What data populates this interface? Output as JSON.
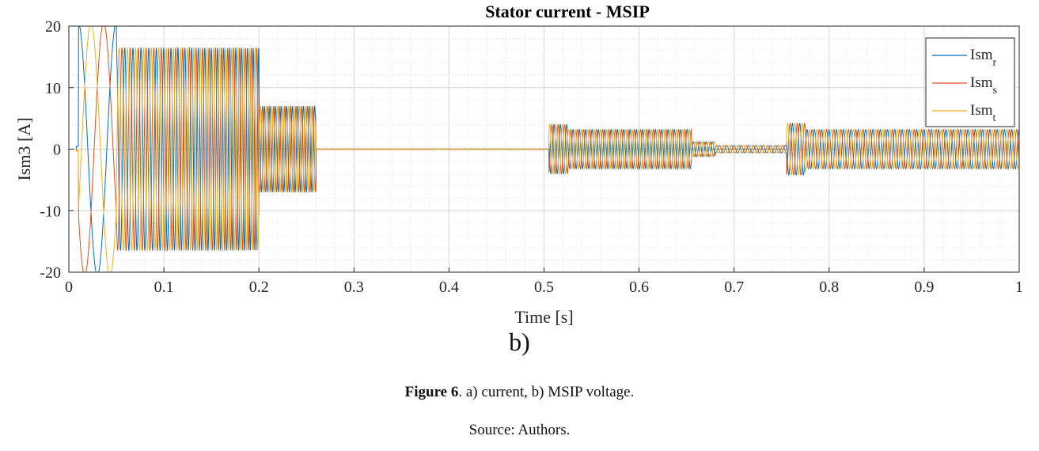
{
  "chart_data": {
    "type": "line",
    "title": "Stator current - MSIP",
    "xlabel": "Time [s]",
    "ylabel": "Ism3 [A]",
    "xlim": [
      0,
      1
    ],
    "ylim": [
      -20,
      20
    ],
    "x_ticks": [
      "0",
      "0.1",
      "0.2",
      "0.3",
      "0.4",
      "0.5",
      "0.6",
      "0.7",
      "0.8",
      "0.9",
      "1"
    ],
    "y_ticks": [
      "20",
      "10",
      "0",
      "-10",
      "-20"
    ],
    "grid": true,
    "legend_position": "top-right",
    "series": [
      {
        "name": "Ism",
        "subscript": "r",
        "color": "#0072BD"
      },
      {
        "name": "Ism",
        "subscript": "s",
        "color": "#D95319"
      },
      {
        "name": "Ism",
        "subscript": "t",
        "color": "#EDB120"
      }
    ],
    "segments": [
      {
        "t_start": 0.0,
        "t_end": 0.01,
        "amplitude": 0.5,
        "description_key": "start"
      },
      {
        "t_start": 0.01,
        "t_end": 0.05,
        "amplitude": 20.5
      },
      {
        "t_start": 0.05,
        "t_end": 0.2,
        "amplitude": 16.5
      },
      {
        "t_start": 0.2,
        "t_end": 0.26,
        "amplitude": 7
      },
      {
        "t_start": 0.26,
        "t_end": 0.505,
        "amplitude": 0.05
      },
      {
        "t_start": 0.505,
        "t_end": 0.525,
        "amplitude": 4
      },
      {
        "t_start": 0.525,
        "t_end": 0.655,
        "amplitude": 3.2
      },
      {
        "t_start": 0.655,
        "t_end": 0.68,
        "amplitude": 1.2
      },
      {
        "t_start": 0.68,
        "t_end": 0.755,
        "amplitude": 0.6
      },
      {
        "t_start": 0.755,
        "t_end": 0.775,
        "amplitude": 4.2
      },
      {
        "t_start": 0.775,
        "t_end": 1.0,
        "amplitude": 3.2
      }
    ]
  },
  "panel_label": "b)",
  "caption": {
    "figure_label": "Figure 6",
    "text": ". a) current, b) MSIP voltage."
  },
  "source_text": "Source: Authors."
}
